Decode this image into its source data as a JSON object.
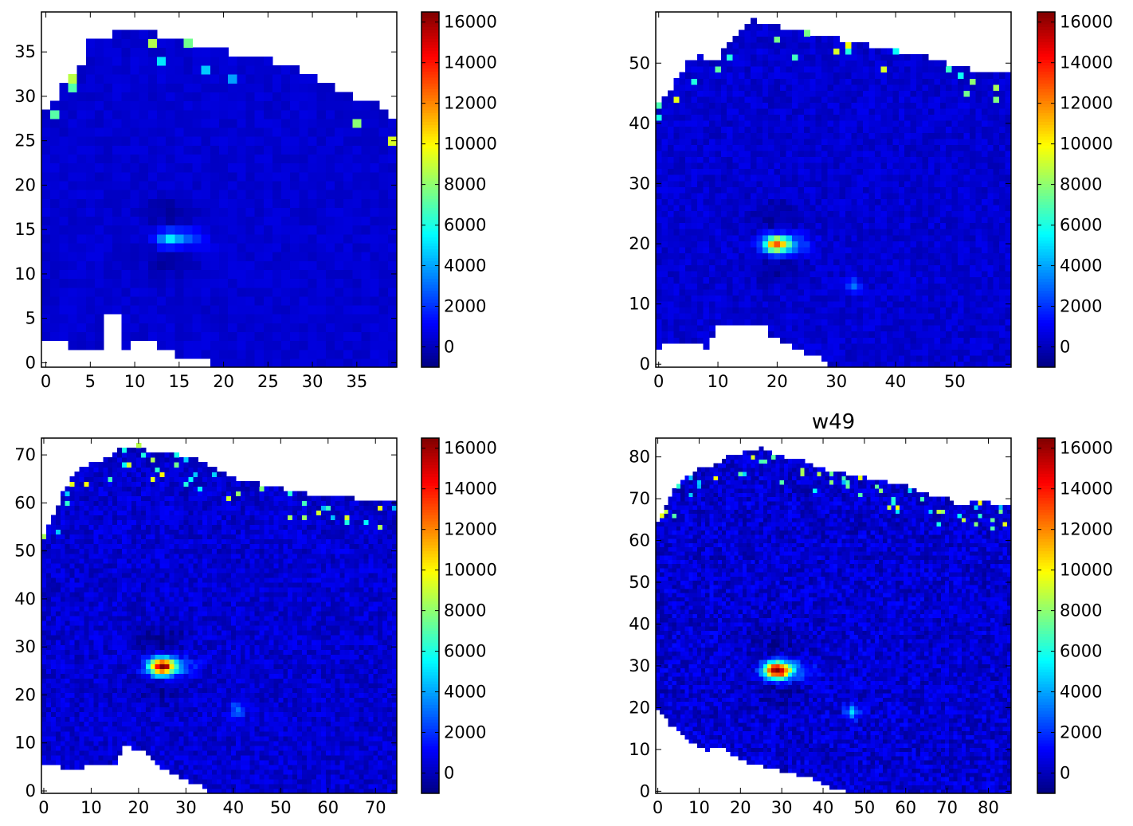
{
  "colormap": "jet",
  "colors": {
    "background": "#ffffff",
    "missing": "#ffffff",
    "axis": "#000000",
    "low": "#00007f",
    "field": "#0000d8",
    "high": "#7f0000"
  },
  "colorbar": {
    "min": -1000,
    "max": 16500,
    "ticks": [
      0,
      2000,
      4000,
      6000,
      8000,
      10000,
      12000,
      14000,
      16000
    ]
  },
  "chart_data": [
    {
      "type": "heatmap",
      "title": "",
      "nx": 40,
      "ny": 40,
      "xlim": [
        -0.5,
        39.5
      ],
      "ylim": [
        -0.5,
        39.5
      ],
      "xticks": [
        0,
        5,
        10,
        15,
        20,
        25,
        30,
        35
      ],
      "yticks": [
        0,
        5,
        10,
        15,
        20,
        25,
        30,
        35
      ],
      "peak": {
        "x": 14,
        "y": 14,
        "value": 5000
      },
      "secondary_source": null,
      "boundary_top": [
        [
          0,
          28
        ],
        [
          1,
          29
        ],
        [
          2,
          31
        ],
        [
          3,
          32
        ],
        [
          4,
          33
        ],
        [
          5,
          36
        ],
        [
          8,
          37
        ],
        [
          12,
          37
        ],
        [
          16,
          36
        ],
        [
          20,
          35
        ],
        [
          25,
          34
        ],
        [
          28,
          33
        ],
        [
          30,
          32
        ],
        [
          34,
          30
        ],
        [
          37,
          29
        ],
        [
          39,
          27
        ]
      ],
      "boundary_bottom": [
        [
          0,
          3
        ],
        [
          2,
          3
        ],
        [
          3,
          2
        ],
        [
          6,
          2
        ],
        [
          7,
          6
        ],
        [
          8,
          6
        ],
        [
          9,
          2
        ],
        [
          11,
          3
        ],
        [
          13,
          2
        ],
        [
          15,
          1
        ],
        [
          17,
          1
        ],
        [
          19,
          0
        ],
        [
          20,
          -1
        ],
        [
          39,
          -1
        ]
      ]
    },
    {
      "type": "heatmap",
      "title": "",
      "nx": 60,
      "ny": 59,
      "xlim": [
        -0.5,
        59.5
      ],
      "ylim": [
        -0.5,
        58.5
      ],
      "xticks": [
        0,
        10,
        20,
        30,
        40,
        50
      ],
      "yticks": [
        0,
        10,
        20,
        30,
        40,
        50
      ],
      "peak": {
        "x": 20,
        "y": 20,
        "value": 12500
      },
      "secondary_source": {
        "x": 33,
        "y": 13,
        "value": 3000
      },
      "boundary_top": [
        [
          0,
          43
        ],
        [
          1,
          44
        ],
        [
          3,
          47
        ],
        [
          5,
          50
        ],
        [
          7,
          51
        ],
        [
          10,
          50
        ],
        [
          11,
          52
        ],
        [
          14,
          55
        ],
        [
          16,
          57
        ],
        [
          20,
          56
        ],
        [
          25,
          55
        ],
        [
          30,
          54
        ],
        [
          35,
          53
        ],
        [
          40,
          52
        ],
        [
          45,
          51
        ],
        [
          48,
          50
        ],
        [
          52,
          49
        ],
        [
          55,
          48
        ],
        [
          59,
          48
        ]
      ],
      "boundary_bottom": [
        [
          0,
          3
        ],
        [
          2,
          4
        ],
        [
          6,
          4
        ],
        [
          8,
          3
        ],
        [
          10,
          7
        ],
        [
          15,
          7
        ],
        [
          18,
          7
        ],
        [
          19,
          5
        ],
        [
          21,
          4
        ],
        [
          23,
          3
        ],
        [
          25,
          2
        ],
        [
          28,
          1
        ],
        [
          30,
          -1
        ],
        [
          59,
          -1
        ]
      ]
    },
    {
      "type": "heatmap",
      "title": "",
      "nx": 75,
      "ny": 74,
      "xlim": [
        -0.5,
        74.5
      ],
      "ylim": [
        -0.5,
        73.5
      ],
      "xticks": [
        0,
        10,
        20,
        30,
        40,
        50,
        60,
        70
      ],
      "yticks": [
        0,
        10,
        20,
        30,
        40,
        50,
        60,
        70
      ],
      "peak": {
        "x": 25,
        "y": 26,
        "value": 16500
      },
      "secondary_source": {
        "x": 41,
        "y": 17,
        "value": 3500
      },
      "boundary_top": [
        [
          0,
          53
        ],
        [
          2,
          57
        ],
        [
          4,
          62
        ],
        [
          6,
          65
        ],
        [
          8,
          67
        ],
        [
          10,
          68
        ],
        [
          13,
          69
        ],
        [
          16,
          71
        ],
        [
          20,
          72
        ],
        [
          22,
          70
        ],
        [
          28,
          70
        ],
        [
          32,
          69
        ],
        [
          36,
          67
        ],
        [
          40,
          65
        ],
        [
          45,
          64
        ],
        [
          50,
          63
        ],
        [
          55,
          62
        ],
        [
          60,
          61
        ],
        [
          65,
          61
        ],
        [
          70,
          60
        ],
        [
          74,
          60
        ]
      ],
      "boundary_bottom": [
        [
          0,
          6
        ],
        [
          4,
          5
        ],
        [
          8,
          5
        ],
        [
          12,
          6
        ],
        [
          15,
          6
        ],
        [
          17,
          10
        ],
        [
          19,
          9
        ],
        [
          22,
          8
        ],
        [
          25,
          5
        ],
        [
          27,
          4
        ],
        [
          29,
          3
        ],
        [
          31,
          2
        ],
        [
          34,
          1
        ],
        [
          36,
          -1
        ],
        [
          74,
          -1
        ]
      ]
    },
    {
      "type": "heatmap",
      "title": "w49",
      "nx": 86,
      "ny": 85,
      "xlim": [
        -0.5,
        85.5
      ],
      "ylim": [
        -0.5,
        84.5
      ],
      "xticks": [
        0,
        10,
        20,
        30,
        40,
        50,
        60,
        70,
        80
      ],
      "yticks": [
        0,
        10,
        20,
        30,
        40,
        50,
        60,
        70,
        80
      ],
      "peak": {
        "x": 29,
        "y": 29,
        "value": 16500
      },
      "secondary_source": {
        "x": 47,
        "y": 19,
        "value": 4000
      },
      "boundary_top": [
        [
          0,
          64
        ],
        [
          2,
          68
        ],
        [
          4,
          72
        ],
        [
          7,
          75
        ],
        [
          10,
          77
        ],
        [
          14,
          78
        ],
        [
          17,
          80
        ],
        [
          21,
          81
        ],
        [
          25,
          82
        ],
        [
          30,
          80
        ],
        [
          35,
          79
        ],
        [
          40,
          77
        ],
        [
          45,
          76
        ],
        [
          50,
          75
        ],
        [
          55,
          74
        ],
        [
          60,
          73
        ],
        [
          65,
          71
        ],
        [
          70,
          70
        ],
        [
          73,
          68
        ],
        [
          76,
          69
        ],
        [
          80,
          69
        ],
        [
          85,
          68
        ]
      ],
      "boundary_bottom": [
        [
          0,
          20
        ],
        [
          3,
          16
        ],
        [
          6,
          14
        ],
        [
          8,
          12
        ],
        [
          10,
          11
        ],
        [
          12,
          10
        ],
        [
          15,
          11
        ],
        [
          18,
          9
        ],
        [
          22,
          7
        ],
        [
          26,
          6
        ],
        [
          30,
          5
        ],
        [
          34,
          4
        ],
        [
          38,
          3
        ],
        [
          42,
          1
        ],
        [
          46,
          0
        ],
        [
          55,
          0
        ],
        [
          60,
          -1
        ],
        [
          85,
          -1
        ]
      ]
    }
  ]
}
